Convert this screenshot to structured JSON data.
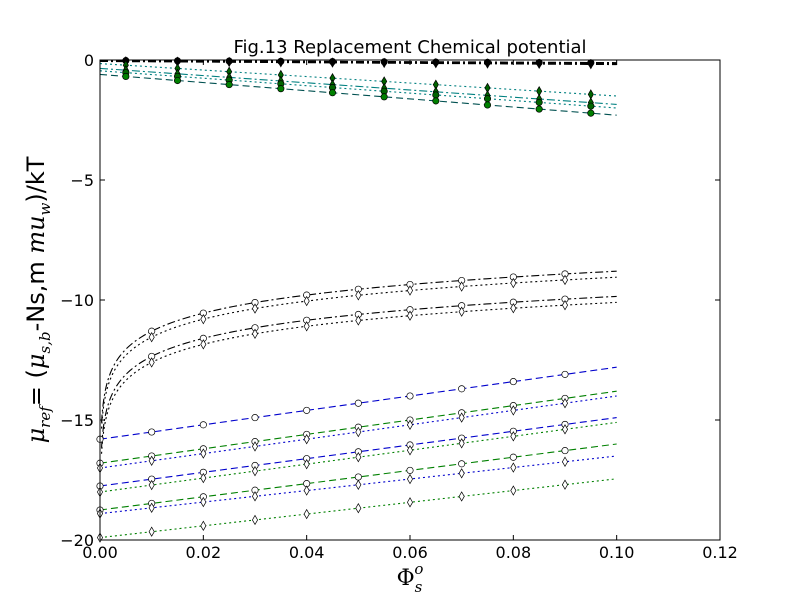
{
  "chart_data": {
    "type": "line",
    "title": "Fig.13 Replacement Chemical potential",
    "xlabel": {
      "base": "Φ",
      "sub": "s",
      "sup": "o"
    },
    "ylabel": {
      "lhs_base": "μ",
      "lhs_sub": "ref",
      "rhs_open": "= (",
      "mu_base": "μ",
      "mu_sub": "s,b",
      "mid": "-Ns,m ",
      "mu2": "mu",
      "mu2_sub": "w",
      "close": ")/kT"
    },
    "xlim": [
      0.0,
      0.12
    ],
    "ylim": [
      -20,
      0
    ],
    "x_ticks": [
      0.0,
      0.02,
      0.04,
      0.06,
      0.08,
      0.1,
      0.12
    ],
    "x_tick_labels": [
      "0.00",
      "0.02",
      "0.04",
      "0.06",
      "0.08",
      "0.10",
      "0.12"
    ],
    "y_ticks": [
      0,
      -5,
      -10,
      -15,
      -20
    ],
    "y_tick_labels": [
      "0",
      "−5",
      "−10",
      "−15",
      "−20"
    ],
    "grid": false,
    "series": [
      {
        "color": "#000000",
        "dash": "8,3,2,3",
        "marker": "circle",
        "fill": "#000000",
        "type": "flat",
        "x": [
          0.005,
          0.015,
          0.025,
          0.035,
          0.045,
          0.055,
          0.065,
          0.075,
          0.085,
          0.095
        ],
        "y0": -0.02,
        "y1": -0.12
      },
      {
        "color": "#000000",
        "dash": "8,3,2,3",
        "marker": "diamond",
        "fill": "#000000",
        "type": "flat",
        "x": [
          0.005,
          0.015,
          0.025,
          0.035,
          0.045,
          0.055,
          0.065,
          0.075,
          0.085,
          0.095
        ],
        "y0": -0.05,
        "y1": -0.18
      },
      {
        "color": "#008080",
        "dash": "2,3",
        "marker": "diamond",
        "fill": "#006400",
        "type": "linear",
        "x": [
          0.005,
          0.015,
          0.025,
          0.035,
          0.045,
          0.055,
          0.065,
          0.075,
          0.085,
          0.095
        ],
        "y0": -0.15,
        "y1": -1.5
      },
      {
        "color": "#008080",
        "dash": "8,3,2,3",
        "marker": "diamond",
        "fill": "#006400",
        "type": "linear",
        "x": [
          0.005,
          0.015,
          0.025,
          0.035,
          0.045,
          0.055,
          0.065,
          0.075,
          0.085,
          0.095
        ],
        "y0": -0.35,
        "y1": -1.85
      },
      {
        "color": "#008080",
        "dash": "2,3",
        "marker": "circle",
        "fill": "#006400",
        "type": "linear",
        "x": [
          0.005,
          0.015,
          0.025,
          0.035,
          0.045,
          0.055,
          0.065,
          0.075,
          0.085,
          0.095
        ],
        "y0": -0.45,
        "y1": -2.0
      },
      {
        "color": "#005050",
        "dash": "7,4",
        "marker": "circle",
        "fill": "#008000",
        "type": "linear",
        "x": [
          0.005,
          0.015,
          0.025,
          0.035,
          0.045,
          0.055,
          0.065,
          0.075,
          0.085,
          0.095
        ],
        "y0": -0.6,
        "y1": -2.3
      },
      {
        "color": "#000000",
        "dash": "8,3,2,3",
        "marker": "circle",
        "fill": "#ffffff",
        "type": "log",
        "x": [
          0.01,
          0.02,
          0.03,
          0.04,
          0.05,
          0.06,
          0.07,
          0.08,
          0.09
        ],
        "y_at_01": -11.3,
        "y_at_10": -8.8
      },
      {
        "color": "#000000",
        "dash": "2,3",
        "marker": "diamond",
        "fill": "#ffffff",
        "type": "log",
        "x": [
          0.01,
          0.02,
          0.03,
          0.04,
          0.05,
          0.06,
          0.07,
          0.08,
          0.09
        ],
        "y_at_01": -11.55,
        "y_at_10": -9.05
      },
      {
        "color": "#000000",
        "dash": "8,3,2,3",
        "marker": "circle",
        "fill": "#ffffff",
        "type": "log",
        "x": [
          0.01,
          0.02,
          0.03,
          0.04,
          0.05,
          0.06,
          0.07,
          0.08,
          0.09
        ],
        "y_at_01": -12.35,
        "y_at_10": -9.85
      },
      {
        "color": "#000000",
        "dash": "2,3",
        "marker": "diamond",
        "fill": "#ffffff",
        "type": "log",
        "x": [
          0.01,
          0.02,
          0.03,
          0.04,
          0.05,
          0.06,
          0.07,
          0.08,
          0.09
        ],
        "y_at_01": -12.6,
        "y_at_10": -10.1
      },
      {
        "color": "#0000cc",
        "dash": "7,4",
        "marker": "circle",
        "fill": "#ffffff",
        "type": "linear",
        "x": [
          0.0,
          0.01,
          0.02,
          0.03,
          0.04,
          0.05,
          0.06,
          0.07,
          0.08,
          0.09
        ],
        "y0": -15.8,
        "y1": -12.8
      },
      {
        "color": "#008000",
        "dash": "7,4",
        "marker": "circle",
        "fill": "#ffffff",
        "type": "linear",
        "x": [
          0.0,
          0.01,
          0.02,
          0.03,
          0.04,
          0.05,
          0.06,
          0.07,
          0.08,
          0.09
        ],
        "y0": -16.8,
        "y1": -13.8
      },
      {
        "color": "#0000cc",
        "dash": "2,3",
        "marker": "diamond",
        "fill": "#ffffff",
        "type": "linear",
        "x": [
          0.0,
          0.01,
          0.02,
          0.03,
          0.04,
          0.05,
          0.06,
          0.07,
          0.08,
          0.09
        ],
        "y0": -17.0,
        "y1": -14.0
      },
      {
        "color": "#0000cc",
        "dash": "7,4",
        "marker": "circle",
        "fill": "#ffffff",
        "type": "linear",
        "x": [
          0.0,
          0.01,
          0.02,
          0.03,
          0.04,
          0.05,
          0.06,
          0.07,
          0.08,
          0.09
        ],
        "y0": -17.75,
        "y1": -14.9
      },
      {
        "color": "#008000",
        "dash": "2,3",
        "marker": "diamond",
        "fill": "#ffffff",
        "type": "linear",
        "x": [
          0.0,
          0.01,
          0.02,
          0.03,
          0.04,
          0.05,
          0.06,
          0.07,
          0.08,
          0.09
        ],
        "y0": -18.0,
        "y1": -15.1
      },
      {
        "color": "#008000",
        "dash": "7,4",
        "marker": "circle",
        "fill": "#ffffff",
        "type": "linear",
        "x": [
          0.0,
          0.01,
          0.02,
          0.03,
          0.04,
          0.05,
          0.06,
          0.07,
          0.08,
          0.09
        ],
        "y0": -18.75,
        "y1": -16.0
      },
      {
        "color": "#0000cc",
        "dash": "2,3",
        "marker": "diamond",
        "fill": "#ffffff",
        "type": "linear",
        "x": [
          0.0,
          0.01,
          0.02,
          0.03,
          0.04,
          0.05,
          0.06,
          0.07,
          0.08,
          0.09
        ],
        "y0": -18.9,
        "y1": -16.5
      },
      {
        "color": "#008000",
        "dash": "2,3",
        "marker": "diamond",
        "fill": "#ffffff",
        "type": "linear",
        "x": [
          0.0,
          0.01,
          0.02,
          0.03,
          0.04,
          0.05,
          0.06,
          0.07,
          0.08,
          0.09
        ],
        "y0": -19.9,
        "y1": -17.45
      }
    ]
  }
}
